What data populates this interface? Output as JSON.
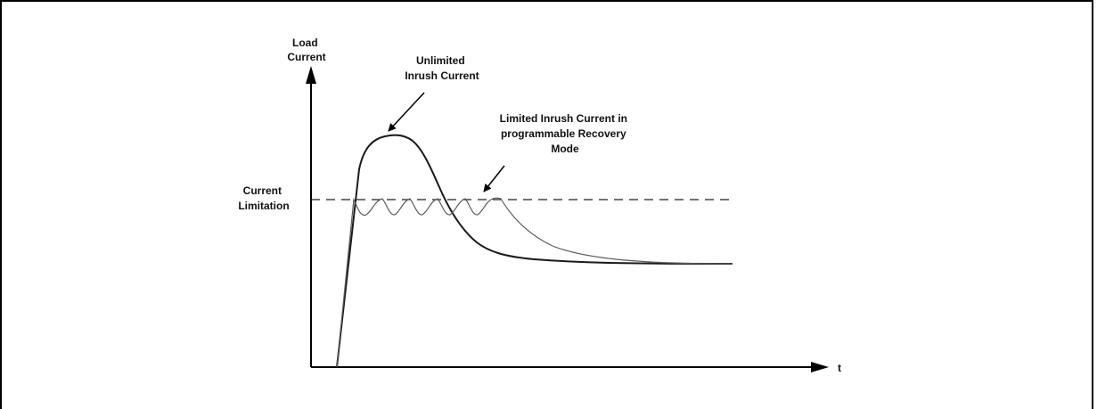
{
  "diagram": {
    "y_axis_label": [
      "Load",
      "Current"
    ],
    "x_axis_label": "t",
    "threshold_label": [
      "Current",
      "Limitation"
    ],
    "annotation_unlimited": [
      "Unlimited",
      "Inrush Current"
    ],
    "annotation_limited": [
      "Limited Inrush Current in",
      "programmable Recovery",
      "Mode"
    ],
    "colors": {
      "unlimited_curve": "#1a1a1a",
      "limited_curve": "#5a5a5a",
      "axes": "#000000",
      "threshold": "#222222"
    }
  }
}
